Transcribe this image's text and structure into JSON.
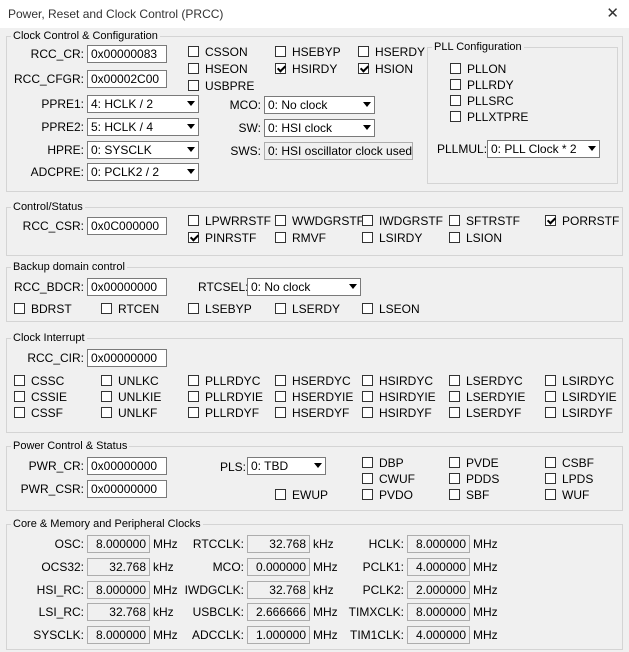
{
  "window": {
    "title": "Power, Reset and Clock Control (PRCC)",
    "close": "✕"
  },
  "clock_config": {
    "label": "Clock Control & Configuration",
    "rcc_cr_label": "RCC_CR:",
    "rcc_cr": "0x00000083",
    "rcc_cfgr_label": "RCC_CFGR:",
    "rcc_cfgr": "0x00002C00",
    "ppre1_label": "PPRE1:",
    "ppre1": "4: HCLK / 2",
    "ppre2_label": "PPRE2:",
    "ppre2": "5: HCLK / 4",
    "hpre_label": "HPRE:",
    "hpre": "0: SYSCLK",
    "adcpre_label": "ADCPRE:",
    "adcpre": "0: PCLK2 / 2",
    "mco_label": "MCO:",
    "mco": "0: No clock",
    "sw_label": "SW:",
    "sw": "0: HSI clock",
    "sws_label": "SWS:",
    "sws": "0: HSI oscillator clock used",
    "flags": [
      {
        "label": "CSSON",
        "checked": false
      },
      {
        "label": "HSEBYP",
        "checked": false
      },
      {
        "label": "HSERDY",
        "checked": false
      },
      {
        "label": "HSEON",
        "checked": false
      },
      {
        "label": "HSIRDY",
        "checked": true
      },
      {
        "label": "HSION",
        "checked": true
      },
      {
        "label": "USBPRE",
        "checked": false
      }
    ]
  },
  "pll": {
    "label": "PLL Configuration",
    "flags": [
      {
        "label": "PLLON",
        "checked": false
      },
      {
        "label": "PLLRDY",
        "checked": false
      },
      {
        "label": "PLLSRC",
        "checked": false
      },
      {
        "label": "PLLXTPRE",
        "checked": false
      }
    ],
    "pllmul_label": "PLLMUL:",
    "pllmul": "0: PLL Clock * 2"
  },
  "control_status": {
    "label": "Control/Status",
    "rcc_csr_label": "RCC_CSR:",
    "rcc_csr": "0x0C000000",
    "flags": [
      {
        "label": "LPWRRSTF",
        "checked": false
      },
      {
        "label": "WWDGRSTF",
        "checked": false
      },
      {
        "label": "IWDGRSTF",
        "checked": false
      },
      {
        "label": "SFTRSTF",
        "checked": false
      },
      {
        "label": "PORRSTF",
        "checked": true
      },
      {
        "label": "PINRSTF",
        "checked": true
      },
      {
        "label": "RMVF",
        "checked": false
      },
      {
        "label": "LSIRDY",
        "checked": false
      },
      {
        "label": "LSION",
        "checked": false
      }
    ]
  },
  "backup": {
    "label": "Backup domain control",
    "rcc_bdcr_label": "RCC_BDCR:",
    "rcc_bdcr": "0x00000000",
    "rtcsel_label": "RTCSEL:",
    "rtcsel": "0: No clock",
    "flags": [
      {
        "label": "BDRST",
        "checked": false
      },
      {
        "label": "RTCEN",
        "checked": false
      },
      {
        "label": "LSEBYP",
        "checked": false
      },
      {
        "label": "LSERDY",
        "checked": false
      },
      {
        "label": "LSEON",
        "checked": false
      }
    ]
  },
  "clock_interrupt": {
    "label": "Clock Interrupt",
    "rcc_cir_label": "RCC_CIR:",
    "rcc_cir": "0x00000000",
    "flags": [
      {
        "label": "CSSC",
        "checked": false
      },
      {
        "label": "UNLKC",
        "checked": false
      },
      {
        "label": "PLLRDYC",
        "checked": false
      },
      {
        "label": "HSERDYC",
        "checked": false
      },
      {
        "label": "HSIRDYC",
        "checked": false
      },
      {
        "label": "LSERDYC",
        "checked": false
      },
      {
        "label": "LSIRDYC",
        "checked": false
      },
      {
        "label": "CSSIE",
        "checked": false
      },
      {
        "label": "UNLKIE",
        "checked": false
      },
      {
        "label": "PLLRDYIE",
        "checked": false
      },
      {
        "label": "HSERDYIE",
        "checked": false
      },
      {
        "label": "HSIRDYIE",
        "checked": false
      },
      {
        "label": "LSERDYIE",
        "checked": false
      },
      {
        "label": "LSIRDYIE",
        "checked": false
      },
      {
        "label": "CSSF",
        "checked": false
      },
      {
        "label": "UNLKF",
        "checked": false
      },
      {
        "label": "PLLRDYF",
        "checked": false
      },
      {
        "label": "HSERDYF",
        "checked": false
      },
      {
        "label": "HSIRDYF",
        "checked": false
      },
      {
        "label": "LSERDYF",
        "checked": false
      },
      {
        "label": "LSIRDYF",
        "checked": false
      }
    ]
  },
  "power": {
    "label": "Power Control & Status",
    "pwr_cr_label": "PWR_CR:",
    "pwr_cr": "0x00000000",
    "pwr_csr_label": "PWR_CSR:",
    "pwr_csr": "0x00000000",
    "pls_label": "PLS:",
    "pls": "0: TBD",
    "flags": [
      {
        "label": "DBP",
        "checked": false
      },
      {
        "label": "PVDE",
        "checked": false
      },
      {
        "label": "CSBF",
        "checked": false
      },
      {
        "label": "CWUF",
        "checked": false
      },
      {
        "label": "PDDS",
        "checked": false
      },
      {
        "label": "LPDS",
        "checked": false
      },
      {
        "label": "EWUP",
        "checked": false
      },
      {
        "label": "PVDO",
        "checked": false
      },
      {
        "label": "SBF",
        "checked": false
      },
      {
        "label": "WUF",
        "checked": false
      }
    ]
  },
  "clocks": {
    "label": "Core & Memory and Peripheral Clocks",
    "items": [
      {
        "label": "OSC:",
        "value": "8.000000",
        "unit": "MHz"
      },
      {
        "label": "OCS32:",
        "value": "32.768",
        "unit": "kHz"
      },
      {
        "label": "HSI_RC:",
        "value": "8.000000",
        "unit": "MHz"
      },
      {
        "label": "LSI_RC:",
        "value": "32.768",
        "unit": "kHz"
      },
      {
        "label": "SYSCLK:",
        "value": "8.000000",
        "unit": "MHz"
      },
      {
        "label": "RTCCLK:",
        "value": "32.768",
        "unit": "kHz"
      },
      {
        "label": "MCO:",
        "value": "0.000000",
        "unit": "MHz"
      },
      {
        "label": "IWDGCLK:",
        "value": "32.768",
        "unit": "kHz"
      },
      {
        "label": "USBCLK:",
        "value": "2.666666",
        "unit": "MHz"
      },
      {
        "label": "ADCCLK:",
        "value": "1.000000",
        "unit": "MHz"
      },
      {
        "label": "HCLK:",
        "value": "8.000000",
        "unit": "MHz"
      },
      {
        "label": "PCLK1:",
        "value": "4.000000",
        "unit": "MHz"
      },
      {
        "label": "PCLK2:",
        "value": "2.000000",
        "unit": "MHz"
      },
      {
        "label": "TIMXCLK:",
        "value": "8.000000",
        "unit": "MHz"
      },
      {
        "label": "TIM1CLK:",
        "value": "4.000000",
        "unit": "MHz"
      }
    ]
  }
}
